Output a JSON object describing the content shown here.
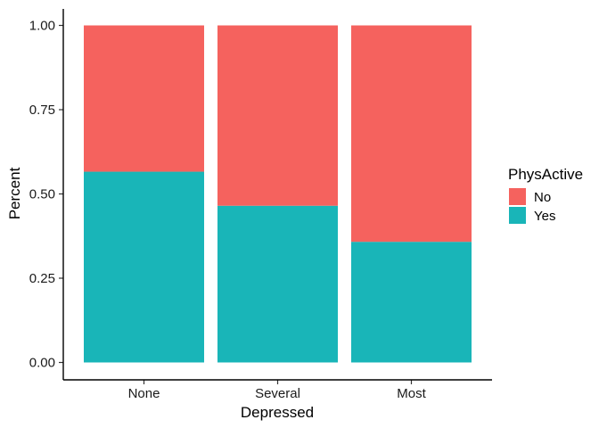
{
  "chart_data": {
    "type": "bar",
    "stacked": true,
    "xlabel": "Depressed",
    "ylabel": "Percent",
    "categories": [
      "None",
      "Several",
      "Most"
    ],
    "ylim": [
      0,
      1
    ],
    "yticks": [
      "0.00",
      "0.25",
      "0.50",
      "0.75",
      "1.00"
    ],
    "ytick_values": [
      0,
      0.25,
      0.5,
      0.75,
      1
    ],
    "legend": {
      "title": "PhysActive",
      "position": "right"
    },
    "series": [
      {
        "name": "Yes",
        "color": "#19B5B8",
        "values": [
          0.566,
          0.465,
          0.358
        ]
      },
      {
        "name": "No",
        "color": "#F5625E",
        "values": [
          0.434,
          0.535,
          0.642
        ]
      }
    ],
    "legend_order": [
      "No",
      "Yes"
    ],
    "grid": false
  }
}
